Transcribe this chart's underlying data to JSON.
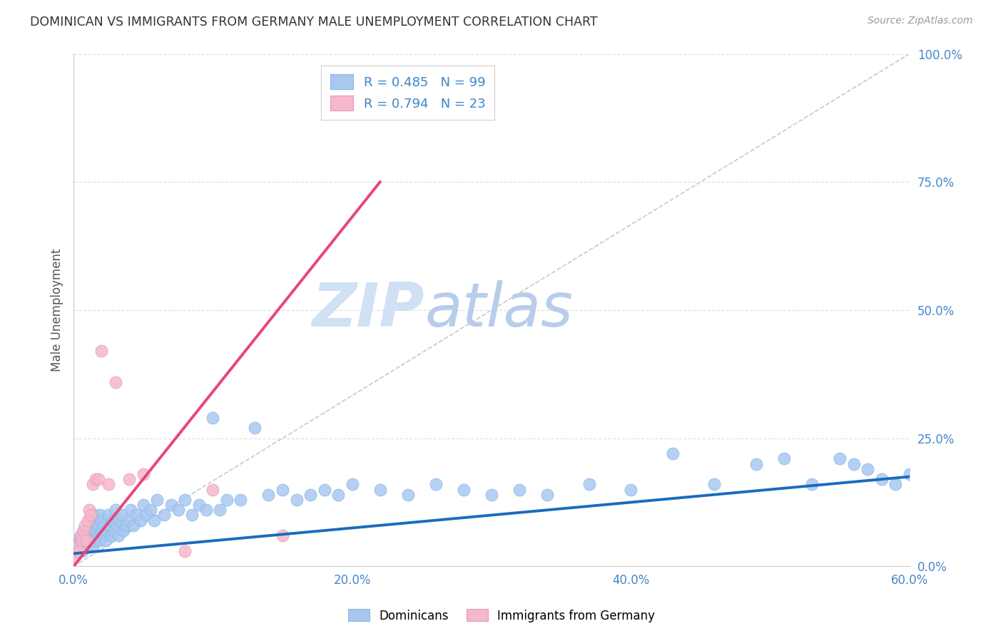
{
  "title": "DOMINICAN VS IMMIGRANTS FROM GERMANY MALE UNEMPLOYMENT CORRELATION CHART",
  "source": "Source: ZipAtlas.com",
  "xlim": [
    0.0,
    0.6
  ],
  "ylim": [
    0.0,
    1.0
  ],
  "ytick_vals": [
    0.0,
    0.25,
    0.5,
    0.75,
    1.0
  ],
  "xtick_vals": [
    0.0,
    0.2,
    0.4,
    0.6
  ],
  "dominicans_x": [
    0.001,
    0.002,
    0.003,
    0.004,
    0.005,
    0.005,
    0.006,
    0.007,
    0.007,
    0.008,
    0.008,
    0.009,
    0.009,
    0.01,
    0.01,
    0.011,
    0.011,
    0.012,
    0.012,
    0.013,
    0.013,
    0.014,
    0.014,
    0.015,
    0.015,
    0.016,
    0.016,
    0.017,
    0.018,
    0.018,
    0.019,
    0.019,
    0.02,
    0.02,
    0.021,
    0.022,
    0.023,
    0.024,
    0.025,
    0.026,
    0.027,
    0.028,
    0.029,
    0.03,
    0.031,
    0.032,
    0.033,
    0.035,
    0.036,
    0.038,
    0.04,
    0.041,
    0.043,
    0.045,
    0.048,
    0.05,
    0.052,
    0.055,
    0.058,
    0.06,
    0.065,
    0.07,
    0.075,
    0.08,
    0.085,
    0.09,
    0.095,
    0.1,
    0.105,
    0.11,
    0.12,
    0.13,
    0.14,
    0.15,
    0.16,
    0.17,
    0.18,
    0.19,
    0.2,
    0.22,
    0.24,
    0.26,
    0.28,
    0.3,
    0.32,
    0.34,
    0.37,
    0.4,
    0.43,
    0.46,
    0.49,
    0.51,
    0.53,
    0.55,
    0.56,
    0.57,
    0.58,
    0.59,
    0.6
  ],
  "dominicans_y": [
    0.03,
    0.04,
    0.03,
    0.05,
    0.04,
    0.06,
    0.03,
    0.05,
    0.07,
    0.04,
    0.06,
    0.05,
    0.07,
    0.04,
    0.06,
    0.05,
    0.08,
    0.06,
    0.09,
    0.05,
    0.07,
    0.04,
    0.08,
    0.06,
    0.1,
    0.07,
    0.05,
    0.09,
    0.06,
    0.08,
    0.05,
    0.1,
    0.07,
    0.09,
    0.06,
    0.08,
    0.05,
    0.07,
    0.1,
    0.08,
    0.06,
    0.09,
    0.07,
    0.11,
    0.08,
    0.06,
    0.09,
    0.1,
    0.07,
    0.08,
    0.09,
    0.11,
    0.08,
    0.1,
    0.09,
    0.12,
    0.1,
    0.11,
    0.09,
    0.13,
    0.1,
    0.12,
    0.11,
    0.13,
    0.1,
    0.12,
    0.11,
    0.29,
    0.11,
    0.13,
    0.13,
    0.27,
    0.14,
    0.15,
    0.13,
    0.14,
    0.15,
    0.14,
    0.16,
    0.15,
    0.14,
    0.16,
    0.15,
    0.14,
    0.15,
    0.14,
    0.16,
    0.15,
    0.22,
    0.16,
    0.2,
    0.21,
    0.16,
    0.21,
    0.2,
    0.19,
    0.17,
    0.16,
    0.18
  ],
  "germany_x": [
    0.001,
    0.002,
    0.003,
    0.004,
    0.005,
    0.006,
    0.007,
    0.008,
    0.009,
    0.01,
    0.011,
    0.012,
    0.014,
    0.016,
    0.018,
    0.02,
    0.025,
    0.03,
    0.04,
    0.05,
    0.08,
    0.1,
    0.15
  ],
  "germany_y": [
    0.02,
    0.03,
    0.04,
    0.03,
    0.06,
    0.05,
    0.07,
    0.08,
    0.05,
    0.09,
    0.11,
    0.1,
    0.16,
    0.17,
    0.17,
    0.42,
    0.16,
    0.36,
    0.17,
    0.18,
    0.03,
    0.15,
    0.06
  ],
  "dominicans_R": 0.485,
  "dominicans_N": 99,
  "germany_R": 0.794,
  "germany_N": 23,
  "trend_dom_x0": 0.0,
  "trend_dom_y0": 0.025,
  "trend_dom_x1": 0.6,
  "trend_dom_y1": 0.175,
  "trend_ger_x0": 0.0,
  "trend_ger_y0": 0.0,
  "trend_ger_x1": 0.22,
  "trend_ger_y1": 0.75,
  "scatter_color_dom": "#a8c8f0",
  "scatter_color_ger": "#f5b8cc",
  "trend_color_dom": "#1a6bbf",
  "trend_color_ger": "#e8457a",
  "legend_label_dom": "Dominicans",
  "legend_label_ger": "Immigrants from Germany",
  "diagonal_color": "#bbbbbb",
  "grid_color": "#e0e0e0",
  "title_color": "#333333",
  "source_color": "#999999",
  "axis_tick_color": "#4488cc",
  "ylabel_color": "#555555",
  "background_color": "#ffffff",
  "watermark_zip": "ZIP",
  "watermark_atlas": "atlas",
  "watermark_color": "#d0e0f5"
}
